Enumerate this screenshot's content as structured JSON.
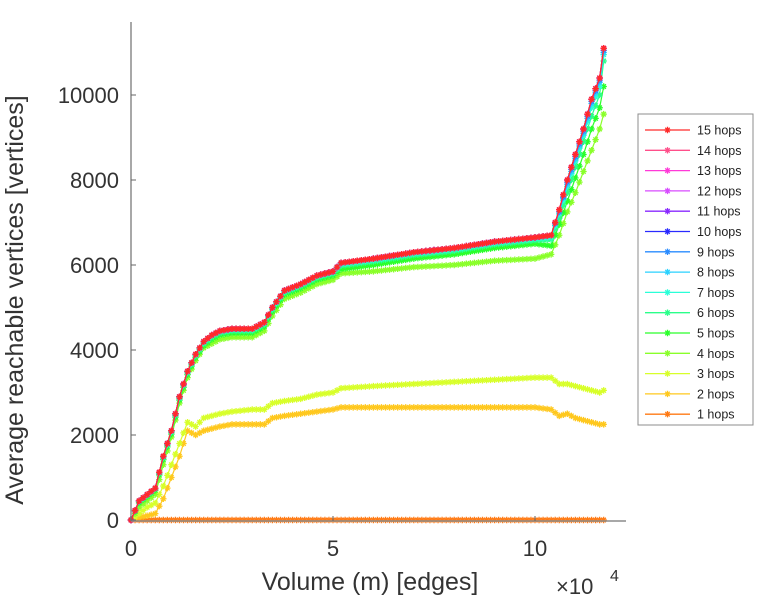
{
  "chart_data": {
    "type": "line",
    "title": "",
    "xlabel": "Volume (m) [edges]",
    "ylabel": "Average reachable vertices [vertices]",
    "x_exponent_label": "×10",
    "x_exponent_power": "4",
    "xlim": [
      0,
      122000
    ],
    "ylim": [
      0,
      11700
    ],
    "xticks": [
      0,
      50000,
      100000
    ],
    "xtick_labels": [
      "0",
      "5",
      "10"
    ],
    "yticks": [
      0,
      2000,
      4000,
      6000,
      8000,
      10000
    ],
    "ytick_labels": [
      "0",
      "2000",
      "4000",
      "6000",
      "8000",
      "10000"
    ],
    "grid": false,
    "legend_position": "right",
    "marker": "asterisk",
    "x": [
      0,
      2000,
      4000,
      6000,
      8000,
      10000,
      12000,
      14000,
      16000,
      18000,
      20000,
      22000,
      25000,
      30000,
      33000,
      35000,
      38000,
      42000,
      46000,
      50000,
      52000,
      60000,
      70000,
      80000,
      90000,
      100000,
      104000,
      106000,
      108000,
      110000,
      112000,
      114000,
      116000,
      117000
    ],
    "series": [
      {
        "name": "15 hops",
        "color": "#ff2a2a",
        "values": [
          0,
          450,
          600,
          750,
          1500,
          2100,
          2900,
          3500,
          3900,
          4200,
          4350,
          4450,
          4500,
          4500,
          4650,
          5000,
          5400,
          5550,
          5750,
          5850,
          6050,
          6150,
          6300,
          6400,
          6550,
          6650,
          6700,
          7300,
          8000,
          8600,
          9200,
          9900,
          10400,
          11100
        ]
      },
      {
        "name": "14 hops",
        "color": "#ff4f8a",
        "values": [
          0,
          450,
          600,
          750,
          1500,
          2100,
          2900,
          3500,
          3900,
          4200,
          4350,
          4450,
          4500,
          4500,
          4650,
          5000,
          5400,
          5550,
          5750,
          5850,
          6050,
          6150,
          6300,
          6400,
          6550,
          6650,
          6700,
          7300,
          8000,
          8600,
          9200,
          9900,
          10400,
          11100
        ]
      },
      {
        "name": "13 hops",
        "color": "#ff3ad8",
        "values": [
          0,
          450,
          600,
          750,
          1500,
          2100,
          2900,
          3500,
          3900,
          4200,
          4350,
          4450,
          4500,
          4500,
          4650,
          5000,
          5400,
          5550,
          5750,
          5850,
          6050,
          6150,
          6300,
          6400,
          6550,
          6650,
          6700,
          7300,
          8000,
          8600,
          9200,
          9900,
          10400,
          11100
        ]
      },
      {
        "name": "12 hops",
        "color": "#d84cff",
        "values": [
          0,
          450,
          600,
          750,
          1500,
          2100,
          2900,
          3500,
          3900,
          4200,
          4350,
          4450,
          4500,
          4500,
          4650,
          5000,
          5400,
          5550,
          5750,
          5850,
          6050,
          6150,
          6300,
          6400,
          6550,
          6650,
          6700,
          7300,
          8000,
          8600,
          9200,
          9900,
          10400,
          11100
        ]
      },
      {
        "name": "11 hops",
        "color": "#8a2aff",
        "values": [
          0,
          450,
          600,
          750,
          1500,
          2100,
          2900,
          3500,
          3900,
          4200,
          4350,
          4450,
          4500,
          4500,
          4650,
          5000,
          5400,
          5550,
          5750,
          5850,
          6050,
          6150,
          6300,
          6400,
          6550,
          6650,
          6700,
          7300,
          8000,
          8600,
          9200,
          9900,
          10400,
          11100
        ]
      },
      {
        "name": "10 hops",
        "color": "#2a2aff",
        "values": [
          0,
          450,
          600,
          750,
          1500,
          2100,
          2900,
          3500,
          3900,
          4200,
          4350,
          4450,
          4500,
          4500,
          4650,
          5000,
          5400,
          5550,
          5750,
          5850,
          6050,
          6150,
          6300,
          6400,
          6550,
          6650,
          6700,
          7300,
          8000,
          8600,
          9200,
          9900,
          10400,
          11100
        ]
      },
      {
        "name": "9 hops",
        "color": "#2a8cff",
        "values": [
          0,
          450,
          600,
          750,
          1500,
          2100,
          2900,
          3500,
          3900,
          4200,
          4350,
          4450,
          4500,
          4500,
          4650,
          5000,
          5400,
          5550,
          5750,
          5850,
          6050,
          6150,
          6300,
          6400,
          6550,
          6650,
          6700,
          7250,
          7950,
          8550,
          9150,
          9850,
          10350,
          11050
        ]
      },
      {
        "name": "8 hops",
        "color": "#2ad2ff",
        "values": [
          0,
          450,
          600,
          750,
          1500,
          2100,
          2900,
          3500,
          3900,
          4200,
          4350,
          4450,
          4500,
          4500,
          4650,
          5000,
          5400,
          5550,
          5750,
          5850,
          6050,
          6150,
          6300,
          6400,
          6550,
          6650,
          6700,
          7250,
          7900,
          8500,
          9100,
          9800,
          10300,
          11000
        ]
      },
      {
        "name": "7 hops",
        "color": "#2affd8",
        "values": [
          0,
          440,
          590,
          740,
          1480,
          2080,
          2880,
          3480,
          3880,
          4180,
          4330,
          4430,
          4480,
          4480,
          4630,
          4980,
          5380,
          5530,
          5730,
          5830,
          6020,
          6120,
          6270,
          6370,
          6520,
          6620,
          6650,
          7200,
          7850,
          8450,
          9050,
          9700,
          10200,
          10950
        ]
      },
      {
        "name": "6 hops",
        "color": "#2aff8a",
        "values": [
          0,
          430,
          580,
          730,
          1460,
          2060,
          2860,
          3460,
          3860,
          4150,
          4300,
          4400,
          4450,
          4450,
          4600,
          4950,
          5350,
          5500,
          5700,
          5800,
          5980,
          6080,
          6230,
          6330,
          6480,
          6580,
          6600,
          7100,
          7700,
          8300,
          8900,
          9500,
          10000,
          10800
        ]
      },
      {
        "name": "5 hops",
        "color": "#2aff2a",
        "values": [
          0,
          400,
          550,
          700,
          1420,
          2020,
          2820,
          3420,
          3820,
          4100,
          4250,
          4350,
          4400,
          4400,
          4550,
          4900,
          5300,
          5450,
          5650,
          5750,
          5900,
          6000,
          6150,
          6250,
          6400,
          6500,
          6450,
          6950,
          7500,
          8050,
          8600,
          9200,
          9700,
          10200
        ]
      },
      {
        "name": "4 hops",
        "color": "#8aff2a",
        "values": [
          0,
          300,
          450,
          600,
          1300,
          1950,
          2750,
          3350,
          3750,
          4050,
          4150,
          4250,
          4300,
          4300,
          4450,
          4800,
          5200,
          5350,
          5550,
          5650,
          5800,
          5850,
          5950,
          6000,
          6100,
          6150,
          6250,
          6700,
          7250,
          7700,
          8200,
          8700,
          9200,
          9550
        ]
      },
      {
        "name": "3 hops",
        "color": "#d8ff2a",
        "values": [
          0,
          150,
          300,
          400,
          800,
          1300,
          1800,
          2300,
          2200,
          2400,
          2450,
          2500,
          2550,
          2600,
          2600,
          2750,
          2800,
          2850,
          2950,
          3000,
          3100,
          3150,
          3200,
          3250,
          3300,
          3350,
          3350,
          3200,
          3200,
          3150,
          3100,
          3050,
          3000,
          3050
        ]
      },
      {
        "name": "2 hops",
        "color": "#ffc81e",
        "values": [
          0,
          60,
          100,
          150,
          500,
          1000,
          1500,
          2100,
          2000,
          2100,
          2150,
          2200,
          2250,
          2250,
          2250,
          2400,
          2450,
          2500,
          2550,
          2600,
          2650,
          2650,
          2650,
          2650,
          2650,
          2650,
          2600,
          2450,
          2500,
          2400,
          2350,
          2300,
          2250,
          2250
        ]
      },
      {
        "name": "1 hops",
        "color": "#ff7a14",
        "values": [
          0,
          0,
          0,
          0,
          0,
          0,
          0,
          0,
          0,
          0,
          0,
          0,
          0,
          0,
          0,
          0,
          0,
          0,
          0,
          0,
          0,
          0,
          0,
          0,
          0,
          0,
          0,
          0,
          0,
          0,
          0,
          0,
          0,
          0
        ]
      }
    ]
  }
}
